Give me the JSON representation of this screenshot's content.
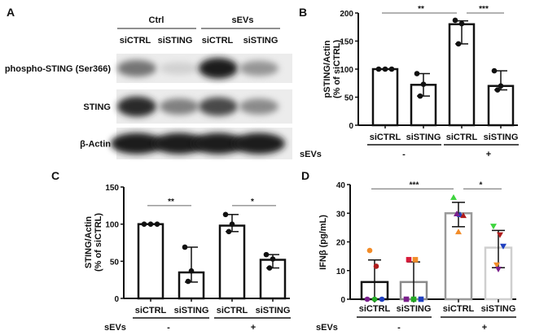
{
  "panels": {
    "A": {
      "label": "A",
      "groups": [
        "Ctrl",
        "sEVs"
      ],
      "lanes": [
        "siCTRL",
        "siSTING",
        "siCTRL",
        "siSTING"
      ],
      "rows": [
        {
          "name": "phospho-STING (Ser366)",
          "band_intensity": [
            0.55,
            0.12,
            0.95,
            0.4
          ]
        },
        {
          "name": "STING",
          "band_intensity": [
            0.9,
            0.5,
            0.75,
            0.45
          ]
        },
        {
          "name": "β-Actin",
          "band_intensity": [
            0.95,
            0.95,
            0.95,
            0.95
          ]
        }
      ]
    }
  },
  "chart_data": [
    {
      "panel": "B",
      "type": "bar",
      "ylabel": [
        "pSTING/Actin",
        "(% of siCTRL)"
      ],
      "ylim": [
        0,
        200
      ],
      "yticks": [
        0,
        50,
        100,
        150,
        200
      ],
      "categories": [
        "siCTRL",
        "siSTING",
        "siCTRL",
        "siSTING"
      ],
      "group_label": "sEVs",
      "groups": [
        "-",
        "+"
      ],
      "values": [
        100,
        72,
        180,
        70
      ],
      "error": [
        [
          100,
          100
        ],
        [
          52,
          92
        ],
        [
          145,
          186
        ],
        [
          63,
          97
        ]
      ],
      "points": [
        [
          100,
          100,
          100
        ],
        [
          92,
          73,
          52
        ],
        [
          187,
          181,
          145
        ],
        [
          97,
          70,
          63
        ]
      ],
      "significance": [
        {
          "from": 0,
          "to": 2,
          "label": "**",
          "y": 200
        },
        {
          "from": 2,
          "to": 3,
          "label": "***",
          "y": 200
        }
      ]
    },
    {
      "panel": "C",
      "type": "bar",
      "ylabel": [
        "STING/Actin",
        "(% of siCTRL)"
      ],
      "ylim": [
        0,
        150
      ],
      "yticks": [
        0,
        50,
        100,
        150
      ],
      "categories": [
        "siCTRL",
        "siSTING",
        "siCTRL",
        "siSTING"
      ],
      "group_label": "sEVs",
      "groups": [
        "-",
        "+"
      ],
      "values": [
        100,
        35,
        98,
        52
      ],
      "error": [
        [
          100,
          100
        ],
        [
          22,
          69
        ],
        [
          90,
          113
        ],
        [
          41,
          59
        ]
      ],
      "points": [
        [
          100,
          100,
          100
        ],
        [
          69,
          37,
          23
        ],
        [
          113,
          100,
          90
        ],
        [
          59,
          53,
          41
        ]
      ],
      "significance": [
        {
          "from": 0,
          "to": 1,
          "label": "**",
          "y": 125
        },
        {
          "from": 2,
          "to": 3,
          "label": "*",
          "y": 125
        }
      ]
    },
    {
      "panel": "D",
      "type": "bar",
      "ylabel": [
        "IFNβ (pg/mL)"
      ],
      "ylim": [
        0,
        40
      ],
      "yticks": [
        0,
        10,
        20,
        30,
        40
      ],
      "categories": [
        "siCTRL",
        "siSTING",
        "siCTRL",
        "siSTING"
      ],
      "group_label": "sEVs",
      "groups": [
        "-",
        "+"
      ],
      "values": [
        6,
        6,
        30,
        18
      ],
      "bar_colors": [
        "#111111",
        "#8a8a8a",
        "#9a9a9a",
        "#cfcfcf"
      ],
      "error": [
        [
          0,
          13.7
        ],
        [
          0,
          13
        ],
        [
          25.3,
          33.8
        ],
        [
          11,
          24
        ]
      ],
      "points": [
        [
          {
            "v": 17,
            "c": "#f28c28",
            "m": "circle"
          },
          {
            "v": 11.5,
            "c": "#b01c1c",
            "m": "circle"
          },
          {
            "v": 0,
            "c": "#7a1f8c",
            "m": "circle"
          },
          {
            "v": 0,
            "c": "#22aa22",
            "m": "circle"
          },
          {
            "v": 0,
            "c": "#1f3fbf",
            "m": "circle"
          }
        ],
        [
          {
            "v": 13.8,
            "c": "#d81b3a",
            "m": "square"
          },
          {
            "v": 13.8,
            "c": "#f28c28",
            "m": "square"
          },
          {
            "v": 0,
            "c": "#7a1f8c",
            "m": "square"
          },
          {
            "v": 0,
            "c": "#22aa22",
            "m": "square"
          },
          {
            "v": 0,
            "c": "#1f3fbf",
            "m": "square"
          }
        ],
        [
          {
            "v": 35.5,
            "c": "#3ed43e",
            "m": "tri"
          },
          {
            "v": 29.5,
            "c": "#1f3fbf",
            "m": "tri"
          },
          {
            "v": 29.2,
            "c": "#b01c1c",
            "m": "tri"
          },
          {
            "v": 29.8,
            "c": "#7a1f8c",
            "m": "tri"
          },
          {
            "v": 23.5,
            "c": "#f28c28",
            "m": "tri"
          }
        ],
        [
          {
            "v": 25.5,
            "c": "#3ed43e",
            "m": "itri"
          },
          {
            "v": 22.5,
            "c": "#b01c1c",
            "m": "itri"
          },
          {
            "v": 18.5,
            "c": "#1f3fbf",
            "m": "itri"
          },
          {
            "v": 12,
            "c": "#f28c28",
            "m": "itri"
          },
          {
            "v": 10.5,
            "c": "#7a1f8c",
            "m": "itri"
          }
        ]
      ],
      "significance": [
        {
          "from": 0,
          "to": 2,
          "label": "***",
          "y": 38.5
        },
        {
          "from": 2,
          "to": 3,
          "label": "*",
          "y": 38.5
        }
      ]
    }
  ]
}
